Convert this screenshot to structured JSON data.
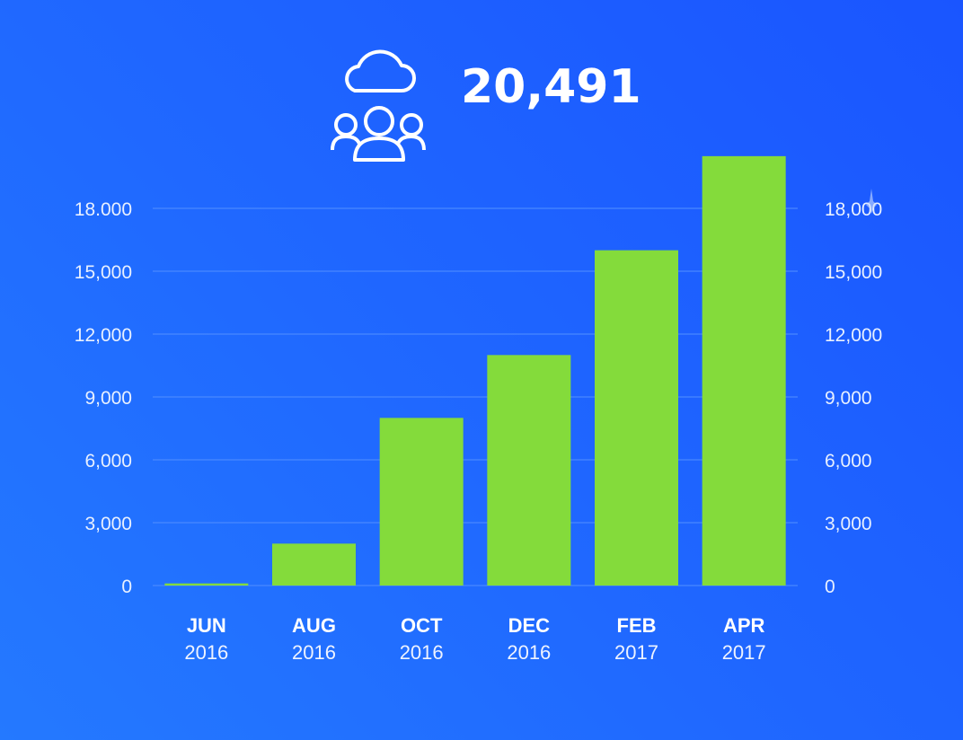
{
  "header": {
    "total_value": "20,491",
    "icons": [
      "cloud-icon",
      "users-group-icon"
    ]
  },
  "chart_data": {
    "type": "bar",
    "categories": [
      "JUN 2016",
      "AUG 2016",
      "OCT 2016",
      "DEC 2016",
      "FEB 2017",
      "APR 2017"
    ],
    "category_labels": [
      {
        "month": "JUN",
        "year": "2016"
      },
      {
        "month": "AUG",
        "year": "2016"
      },
      {
        "month": "OCT",
        "year": "2016"
      },
      {
        "month": "DEC",
        "year": "2016"
      },
      {
        "month": "FEB",
        "year": "2017"
      },
      {
        "month": "APR",
        "year": "2017"
      }
    ],
    "values": [
      100,
      2000,
      8000,
      11000,
      16000,
      20491
    ],
    "ylim": [
      0,
      18000
    ],
    "yticks": [
      0,
      3000,
      6000,
      9000,
      12000,
      15000,
      18000
    ],
    "ytick_labels": [
      "0",
      "3,000",
      "6,000",
      "9,000",
      "12,000",
      "15,000",
      "18.000"
    ],
    "ytick_labels_right": [
      "0",
      "3,000",
      "6,000",
      "9,000",
      "12,000",
      "15,000",
      "18,000"
    ],
    "title": "",
    "xlabel": "",
    "ylabel": "",
    "grid": true,
    "legend": "none",
    "colors": {
      "bar": "#84db3b",
      "background": "#1f66ff",
      "grid": "#4f8dff"
    }
  }
}
